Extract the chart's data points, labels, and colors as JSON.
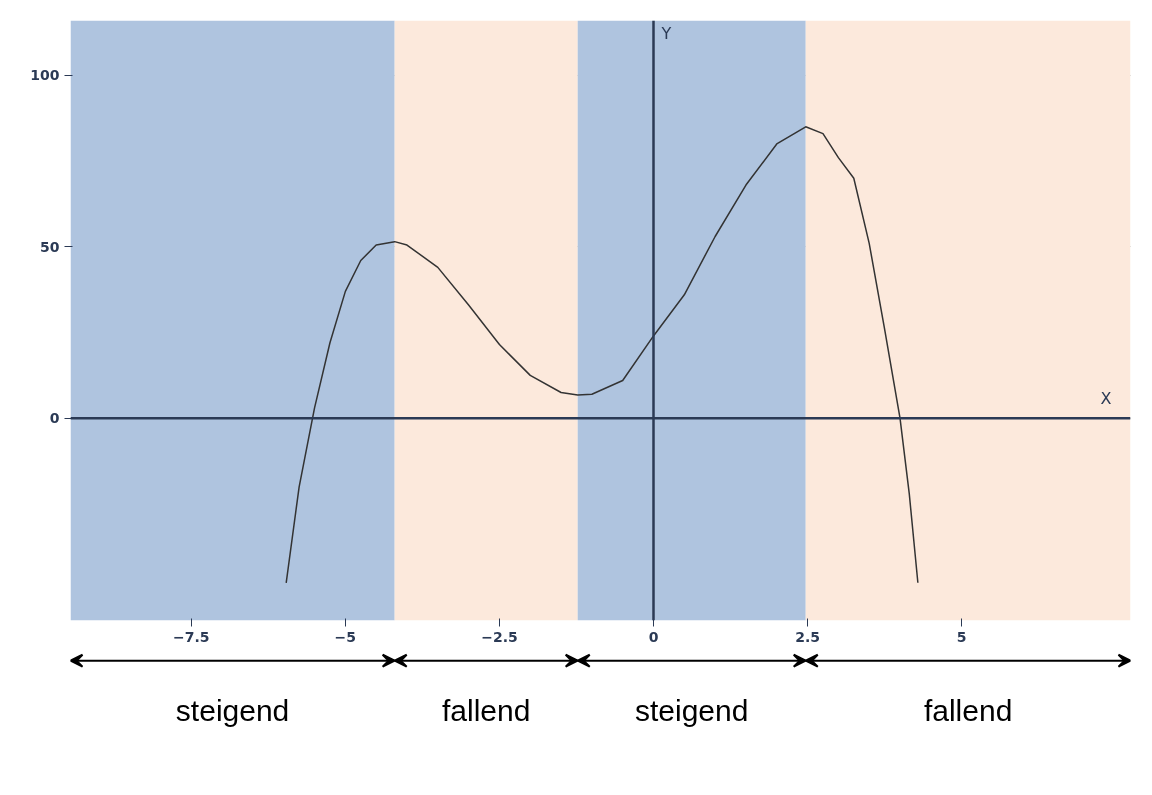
{
  "chart_data": {
    "type": "line",
    "xlabel": "X",
    "ylabel": "Y",
    "x": [
      -5.96,
      -5.75,
      -5.5,
      -5.25,
      -5,
      -4.75,
      -4.5,
      -4.2,
      -4,
      -3.5,
      -3,
      -2.5,
      -2,
      -1.5,
      -1.23,
      -1,
      -0.5,
      0,
      0.5,
      1,
      1.5,
      2,
      2.47,
      2.75,
      3,
      3.25,
      3.5,
      3.75,
      4,
      4.15,
      4.29
    ],
    "series": [
      {
        "color": "#333333",
        "values": [
          -48,
          -20,
          3,
          22,
          37,
          46,
          50.5,
          51.5,
          50.5,
          44,
          33,
          21.5,
          12.5,
          7.5,
          6.8,
          7,
          11,
          24,
          36,
          53,
          68,
          80,
          85,
          83,
          76,
          70,
          51,
          26,
          0,
          -22,
          -48
        ]
      }
    ],
    "xlim": [
      -9.46,
      7.74
    ],
    "ylim": [
      -59,
      116
    ],
    "xticks": [
      -7.5,
      -5,
      -2.5,
      0,
      2.5,
      5
    ],
    "yticks": [
      0,
      50,
      100
    ],
    "grid": true,
    "marker": "none",
    "line_style": "solid",
    "bands": [
      {
        "axis": "x",
        "from": -9.46,
        "to": -4.2,
        "label": "steigend",
        "color": "#afc4df"
      },
      {
        "axis": "x",
        "from": -4.2,
        "to": -1.23,
        "label": "fallend",
        "color": "#fce9dc"
      },
      {
        "axis": "x",
        "from": -1.23,
        "to": 2.47,
        "label": "steigend",
        "color": "#afc4df"
      },
      {
        "axis": "x",
        "from": 2.47,
        "to": 7.74,
        "label": "fallend",
        "color": "#fce9dc"
      }
    ]
  }
}
